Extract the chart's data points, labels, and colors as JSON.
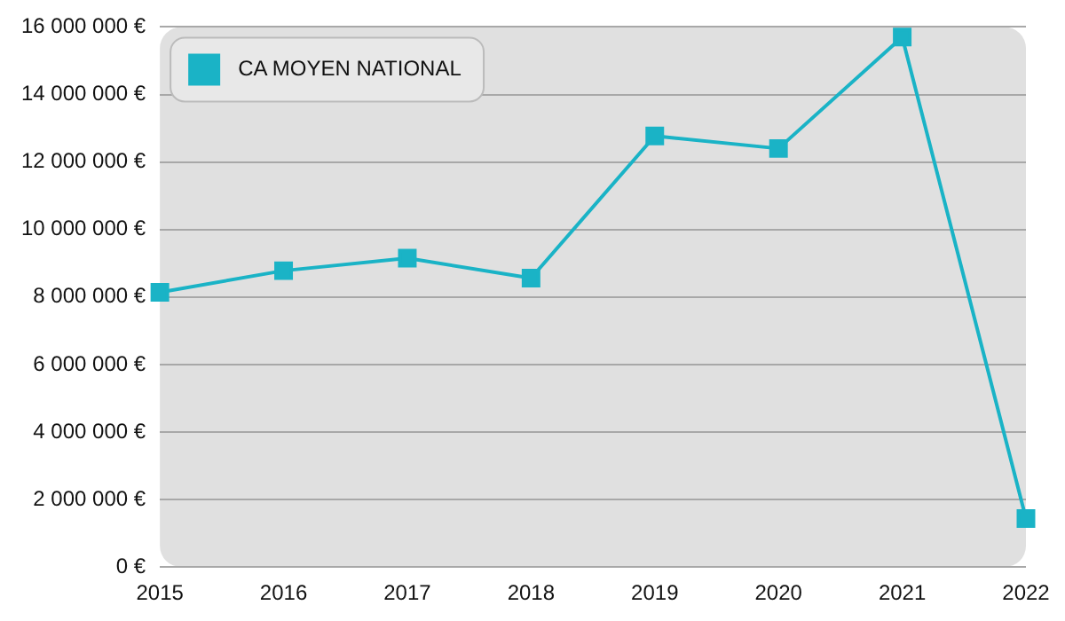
{
  "chart_data": {
    "type": "line",
    "categories": [
      "2015",
      "2016",
      "2017",
      "2018",
      "2019",
      "2020",
      "2021",
      "2022"
    ],
    "series": [
      {
        "name": "CA MOYEN NATIONAL",
        "color": "#1ab3c6",
        "values": [
          8140000,
          8780000,
          9150000,
          8560000,
          12770000,
          12400000,
          15700000,
          1440000
        ]
      }
    ],
    "ylim": [
      0,
      16000000
    ],
    "yticks": [
      {
        "value": 0,
        "label": "0 €"
      },
      {
        "value": 2000000,
        "label": "2 000 000 €"
      },
      {
        "value": 4000000,
        "label": "4 000 000 €"
      },
      {
        "value": 6000000,
        "label": "6 000 000 €"
      },
      {
        "value": 8000000,
        "label": "8 000 000 €"
      },
      {
        "value": 10000000,
        "label": "10 000 000 €"
      },
      {
        "value": 12000000,
        "label": "12 000 000 €"
      },
      {
        "value": 14000000,
        "label": "14 000 000 €"
      },
      {
        "value": 16000000,
        "label": "16 000 000 €"
      }
    ],
    "grid": "y",
    "legend": "top left",
    "marker": "square",
    "line_style": "solid"
  }
}
